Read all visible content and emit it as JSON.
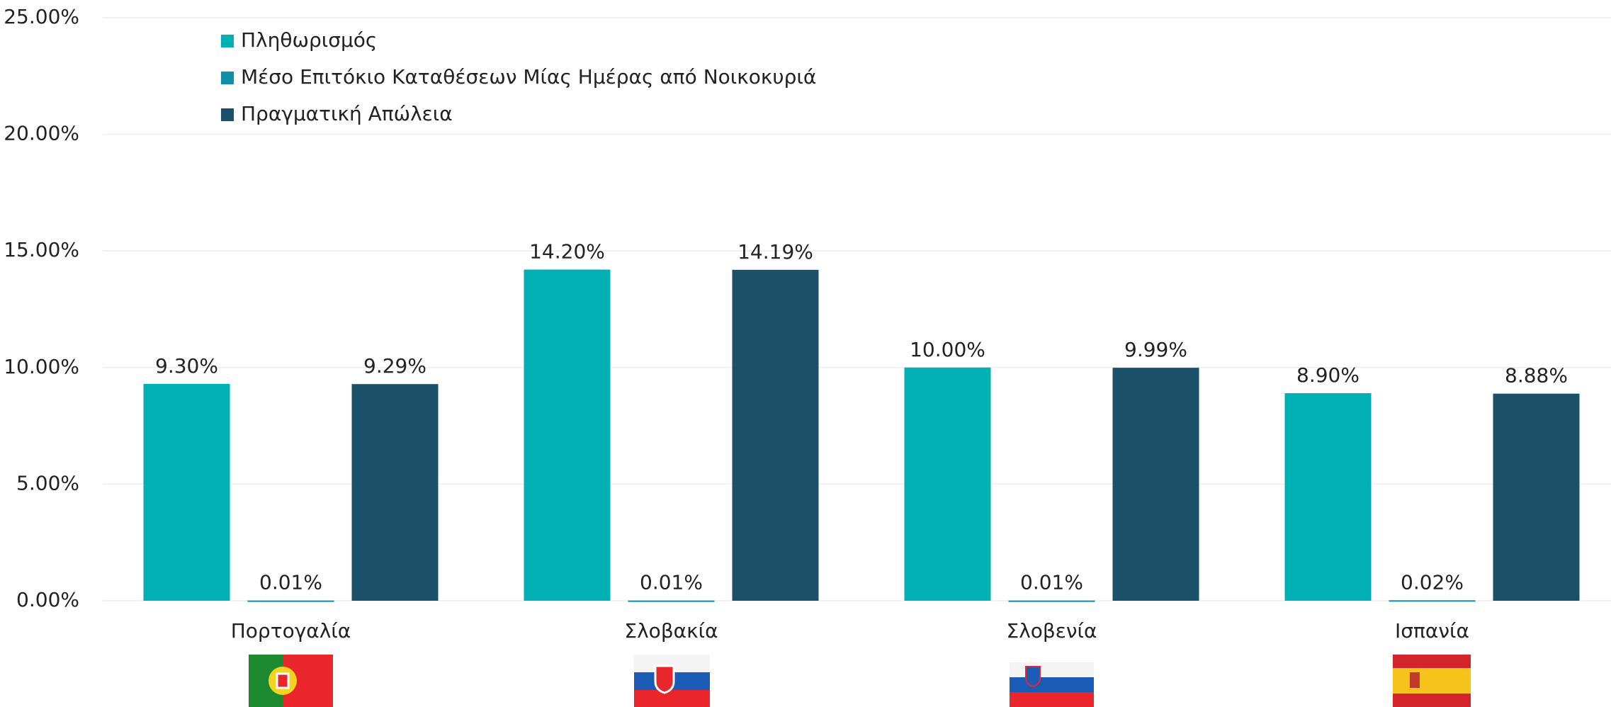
{
  "chart_data": {
    "type": "bar",
    "categories": [
      "Πορτογαλία",
      "Σλοβακία",
      "Σλοβενία",
      "Ισπανία"
    ],
    "series": [
      {
        "name": "Πληθωρισμός",
        "color": "#00b0b5",
        "values": [
          9.3,
          14.2,
          10.0,
          8.9
        ],
        "value_labels": [
          "9.30%",
          "14.20%",
          "10.00%",
          "8.90%"
        ]
      },
      {
        "name": "Μέσο Επιτόκιο Καταθέσεων Μίας Ημέρας από Νοικοκυριά",
        "color": "#0e8fa8",
        "values": [
          0.01,
          0.01,
          0.01,
          0.02
        ],
        "value_labels": [
          "0.01%",
          "0.01%",
          "0.01%",
          "0.02%"
        ]
      },
      {
        "name": "Πραγματική Απώλεια",
        "color": "#1a5068",
        "values": [
          9.29,
          14.19,
          9.99,
          8.88
        ],
        "value_labels": [
          "9.29%",
          "14.19%",
          "9.99%",
          "8.88%"
        ]
      }
    ],
    "ylim": [
      0,
      25
    ],
    "yticks": [
      {
        "value": 0,
        "label": "0.00%"
      },
      {
        "value": 5,
        "label": "5.00%"
      },
      {
        "value": 10,
        "label": "10.00%"
      },
      {
        "value": 15,
        "label": "15.00%"
      },
      {
        "value": 20,
        "label": "20.00%"
      },
      {
        "value": 25,
        "label": "25.00%"
      }
    ],
    "grid": true
  }
}
